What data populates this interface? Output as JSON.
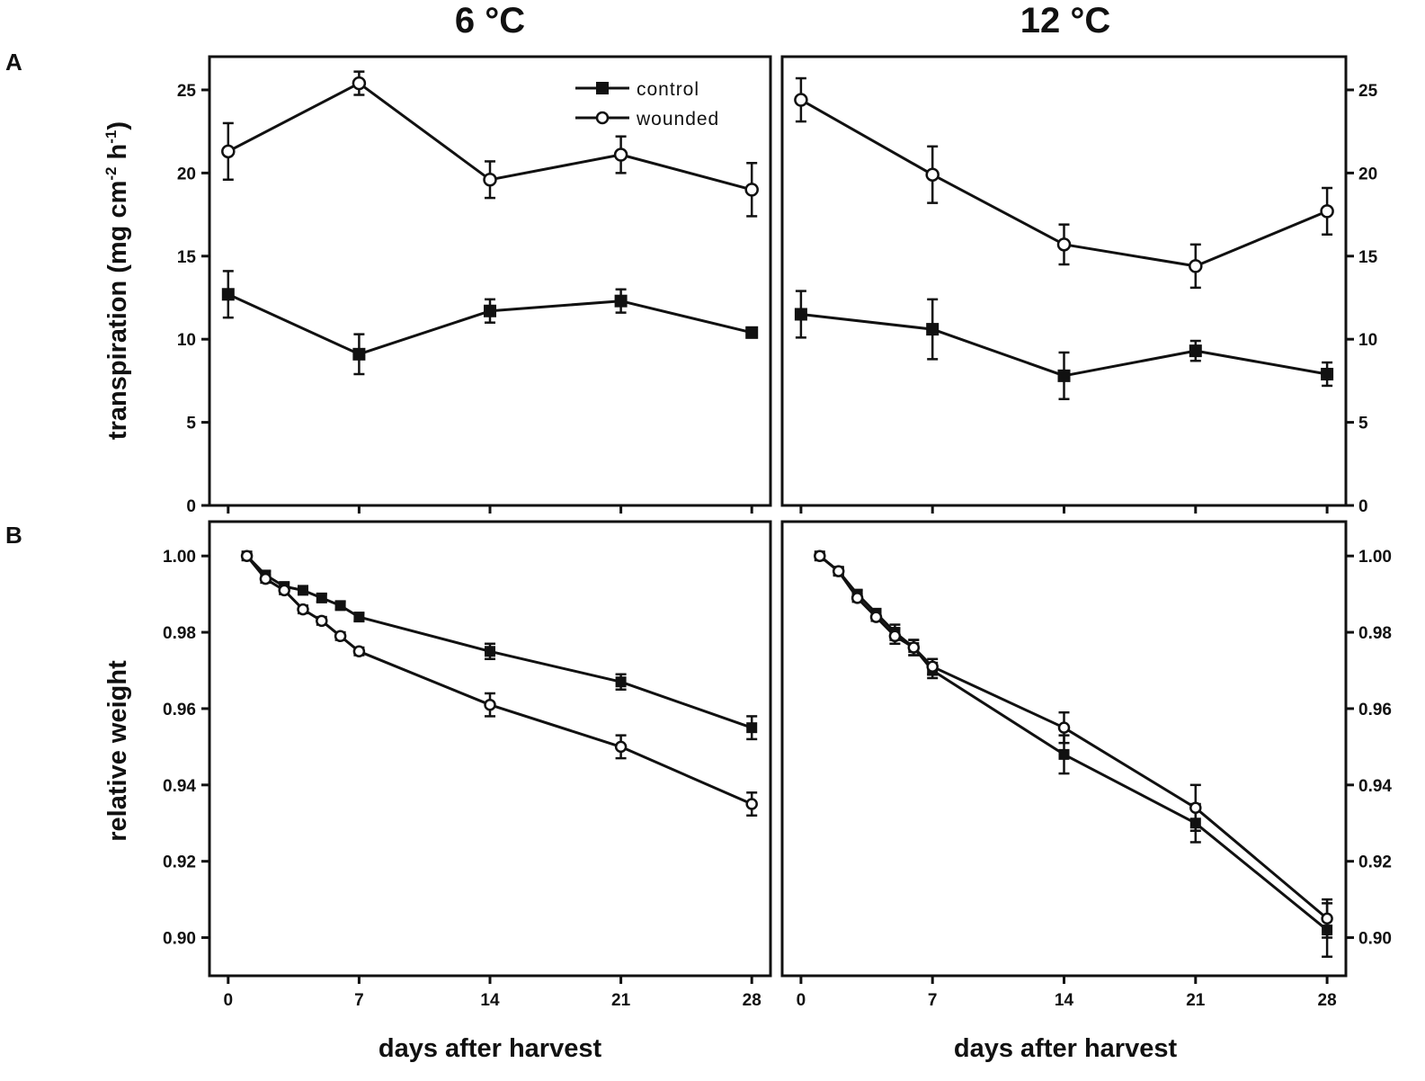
{
  "figure": {
    "column_titles": [
      "6 °C",
      "12 °C"
    ],
    "row_labels": [
      "A",
      "B"
    ],
    "xlabel": "days after harvest",
    "ylabels": {
      "transpiration": {
        "main": "transpiration  (mg cm",
        "sup1": "-2",
        "mid": " h",
        "sup2": "-1",
        "close": ")"
      },
      "weight": "relative weight"
    },
    "legend": {
      "control": "control",
      "wounded": "wounded"
    }
  },
  "chart_data": [
    {
      "id": "A-6C",
      "type": "line",
      "title": "6 °C",
      "xlabel": "",
      "ylabel": "transpiration (mg cm-2 h-1)",
      "xlim": [
        -1,
        29
      ],
      "ylim": [
        0,
        27
      ],
      "xticks": [
        0,
        7,
        14,
        21,
        28
      ],
      "yticks": [
        0,
        5,
        10,
        15,
        20,
        25
      ],
      "ytick_labels": [
        "0",
        "5",
        "10",
        "15",
        "20",
        "25"
      ],
      "series": [
        {
          "name": "control",
          "marker": "square-filled",
          "x": [
            0,
            7,
            14,
            21,
            28
          ],
          "y": [
            12.7,
            9.1,
            11.7,
            12.3,
            10.4
          ],
          "err": [
            1.4,
            1.2,
            0.7,
            0.7,
            0.3
          ]
        },
        {
          "name": "wounded",
          "marker": "circle-open",
          "x": [
            0,
            7,
            14,
            21,
            28
          ],
          "y": [
            21.3,
            25.4,
            19.6,
            21.1,
            19.0
          ],
          "err": [
            1.7,
            0.7,
            1.1,
            1.1,
            1.6
          ]
        }
      ]
    },
    {
      "id": "A-12C",
      "type": "line",
      "title": "12 °C",
      "xlabel": "",
      "ylabel": "transpiration (mg cm-2 h-1)",
      "xlim": [
        -1,
        29
      ],
      "ylim": [
        0,
        27
      ],
      "xticks": [
        0,
        7,
        14,
        21,
        28
      ],
      "yticks": [
        0,
        5,
        10,
        15,
        20,
        25
      ],
      "ytick_labels": [
        "0",
        "5",
        "10",
        "15",
        "20",
        "25"
      ],
      "series": [
        {
          "name": "control",
          "marker": "square-filled",
          "x": [
            0,
            7,
            14,
            21,
            28
          ],
          "y": [
            11.5,
            10.6,
            7.8,
            9.3,
            7.9
          ],
          "err": [
            1.4,
            1.8,
            1.4,
            0.6,
            0.7
          ]
        },
        {
          "name": "wounded",
          "marker": "circle-open",
          "x": [
            0,
            7,
            14,
            21,
            28
          ],
          "y": [
            24.4,
            19.9,
            15.7,
            14.4,
            17.7
          ],
          "err": [
            1.3,
            1.7,
            1.2,
            1.3,
            1.4
          ]
        }
      ]
    },
    {
      "id": "B-6C",
      "type": "line",
      "title": "",
      "xlabel": "days after harvest",
      "ylabel": "relative weight",
      "xlim": [
        -1,
        29
      ],
      "ylim": [
        0.89,
        1.009
      ],
      "xticks": [
        0,
        7,
        14,
        21,
        28
      ],
      "xtick_labels": [
        "0",
        "7",
        "14",
        "21",
        "28"
      ],
      "yticks": [
        0.9,
        0.92,
        0.94,
        0.96,
        0.98,
        1.0
      ],
      "ytick_labels": [
        "0.90",
        "0.92",
        "0.94",
        "0.96",
        "0.98",
        "1.00"
      ],
      "series": [
        {
          "name": "control",
          "marker": "square-filled",
          "x": [
            1,
            2,
            3,
            4,
            5,
            6,
            7,
            14,
            21,
            28
          ],
          "y": [
            1.0,
            0.995,
            0.992,
            0.991,
            0.989,
            0.987,
            0.984,
            0.975,
            0.967,
            0.955
          ],
          "err": [
            0,
            0.001,
            0.001,
            0.001,
            0.001,
            0.001,
            0.001,
            0.002,
            0.002,
            0.003
          ]
        },
        {
          "name": "wounded",
          "marker": "circle-open",
          "x": [
            1,
            2,
            3,
            4,
            5,
            6,
            7,
            14,
            21,
            28
          ],
          "y": [
            1.0,
            0.994,
            0.991,
            0.986,
            0.983,
            0.979,
            0.975,
            0.961,
            0.95,
            0.935
          ],
          "err": [
            0,
            0.001,
            0.001,
            0.001,
            0.001,
            0.001,
            0.001,
            0.003,
            0.003,
            0.003
          ]
        }
      ]
    },
    {
      "id": "B-12C",
      "type": "line",
      "title": "",
      "xlabel": "days after harvest",
      "ylabel": "relative weight",
      "xlim": [
        -1,
        29
      ],
      "ylim": [
        0.89,
        1.009
      ],
      "xticks": [
        0,
        7,
        14,
        21,
        28
      ],
      "xtick_labels": [
        "0",
        "7",
        "14",
        "21",
        "28"
      ],
      "yticks": [
        0.9,
        0.92,
        0.94,
        0.96,
        0.98,
        1.0
      ],
      "ytick_labels": [
        "0.90",
        "0.92",
        "0.94",
        "0.96",
        "0.98",
        "1.00"
      ],
      "series": [
        {
          "name": "control",
          "marker": "square-filled",
          "x": [
            1,
            2,
            3,
            4,
            5,
            6,
            7,
            14,
            21,
            28
          ],
          "y": [
            1.0,
            0.996,
            0.99,
            0.985,
            0.98,
            0.976,
            0.97,
            0.948,
            0.93,
            0.902
          ],
          "err": [
            0,
            0.001,
            0.001,
            0.001,
            0.002,
            0.002,
            0.002,
            0.005,
            0.005,
            0.007
          ]
        },
        {
          "name": "wounded",
          "marker": "circle-open",
          "x": [
            1,
            2,
            3,
            4,
            5,
            6,
            7,
            14,
            21,
            28
          ],
          "y": [
            1.0,
            0.996,
            0.989,
            0.984,
            0.979,
            0.976,
            0.971,
            0.955,
            0.934,
            0.905
          ],
          "err": [
            0,
            0.001,
            0.001,
            0.001,
            0.002,
            0.002,
            0.002,
            0.004,
            0.006,
            0.005
          ]
        }
      ]
    }
  ]
}
